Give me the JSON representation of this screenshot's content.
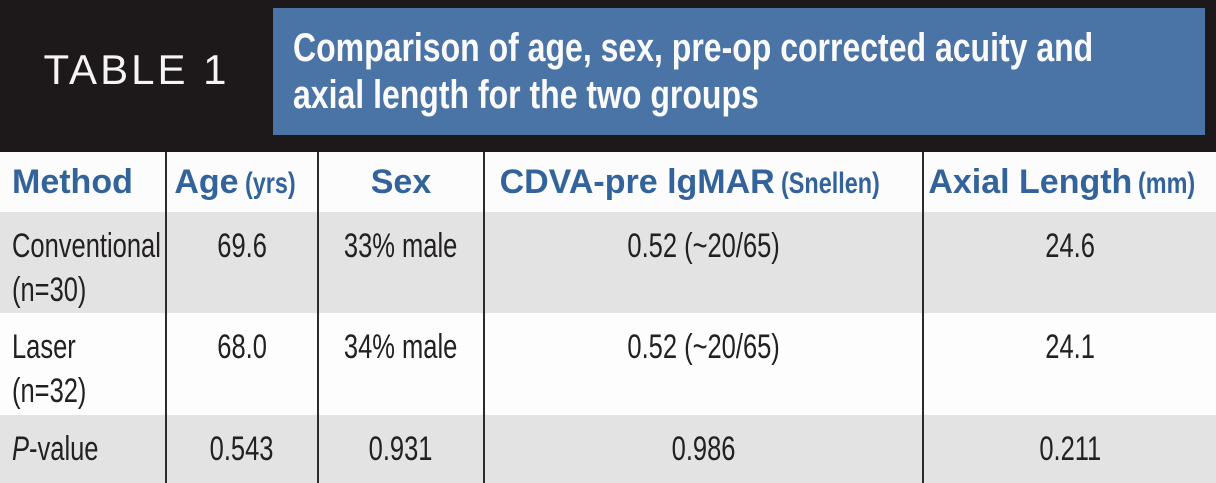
{
  "banner": {
    "label": "TABLE 1",
    "title_line1": "Comparison of age, sex, pre-op corrected acuity and",
    "title_line2": "axial length for the two groups"
  },
  "colors": {
    "banner_black": "#1d1819",
    "banner_blue": "#4a73a6",
    "header_text_blue": "#33639b",
    "row_gray": "#e4e3e3",
    "body_text": "#232021",
    "separator_line": "#2e2a2b"
  },
  "columns": [
    {
      "label": "Method",
      "unit": ""
    },
    {
      "label": "Age",
      "unit": "(yrs)"
    },
    {
      "label": "Sex",
      "unit": ""
    },
    {
      "label": "CDVA-pre lgMAR",
      "unit": "(Snellen)"
    },
    {
      "label": "Axial Length",
      "unit": "(mm)"
    }
  ],
  "rows": [
    {
      "method_line1": "Conventional",
      "method_line2": "(n=30)",
      "age": "69.6",
      "sex": "33% male",
      "cdva": "0.52 (~20/65)",
      "axial": "24.6"
    },
    {
      "method_line1": "Laser",
      "method_line2": "(n=32)",
      "age": "68.0",
      "sex": "34% male",
      "cdva": "0.52 (~20/65)",
      "axial": "24.1"
    },
    {
      "method_italic": "P",
      "method_rest": "-value",
      "age": "0.543",
      "sex": "0.931",
      "cdva": "0.986",
      "axial": "0.211"
    }
  ]
}
